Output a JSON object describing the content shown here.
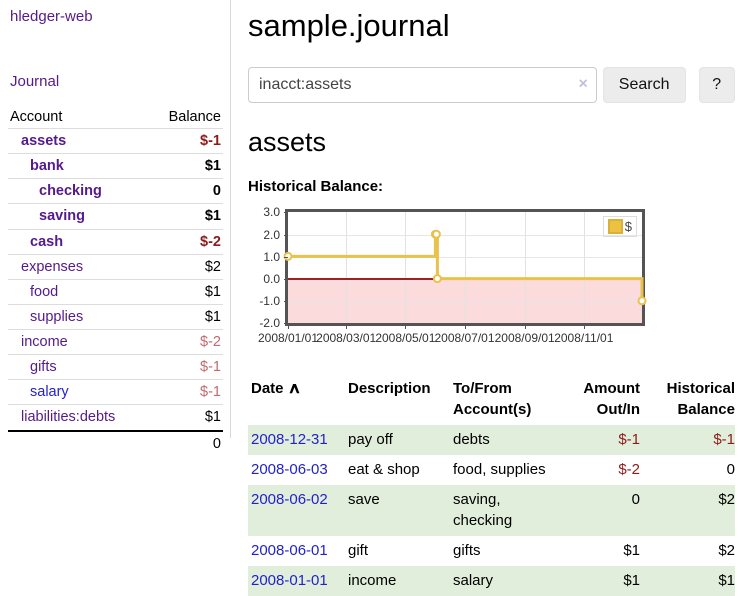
{
  "app": {
    "title": "hledger-web",
    "nav_journal": "Journal"
  },
  "sidebar": {
    "col_account": "Account",
    "col_balance": "Balance",
    "accounts": [
      {
        "label": "assets",
        "depth": 0,
        "bold": true,
        "balance": "$-1"
      },
      {
        "label": "bank",
        "depth": 1,
        "bold": true,
        "balance": "$1"
      },
      {
        "label": "checking",
        "depth": 2,
        "bold": true,
        "balance": "0"
      },
      {
        "label": "saving",
        "depth": 2,
        "bold": true,
        "balance": "$1"
      },
      {
        "label": "cash",
        "depth": 1,
        "bold": true,
        "balance": "$-2"
      },
      {
        "label": "expenses",
        "depth": 0,
        "bold": false,
        "balance": "$2"
      },
      {
        "label": "food",
        "depth": 1,
        "bold": false,
        "balance": "$1"
      },
      {
        "label": "supplies",
        "depth": 1,
        "bold": false,
        "balance": "$1"
      },
      {
        "label": "income",
        "depth": 0,
        "bold": false,
        "balance": "$-2"
      },
      {
        "label": "gifts",
        "depth": 1,
        "bold": false,
        "balance": "$-1"
      },
      {
        "label": "salary",
        "depth": 1,
        "bold": false,
        "balance": "$-1",
        "unvisited": true
      },
      {
        "label": "liabilities:debts",
        "depth": 0,
        "bold": false,
        "balance": "$1"
      }
    ],
    "total": "0"
  },
  "main": {
    "title": "sample.journal",
    "search": {
      "value": "inacct:assets",
      "clear_icon": "×",
      "button_label": "Search",
      "help_label": "?"
    },
    "heading": "assets",
    "chart_label": "Historical Balance:"
  },
  "chart_data": {
    "type": "line",
    "title": "Historical Balance",
    "series": [
      {
        "name": "$",
        "color": "#edc240",
        "step": "after",
        "markers": true,
        "points": [
          [
            "2008-01-01",
            1
          ],
          [
            "2008-06-01",
            2
          ],
          [
            "2008-06-02",
            2
          ],
          [
            "2008-06-03",
            0
          ],
          [
            "2008-12-31",
            -1
          ]
        ]
      }
    ],
    "x_range": [
      "2008-01-01",
      "2008-12-31"
    ],
    "x_ticks": [
      "2008/01/01",
      "2008/03/01",
      "2008/05/01",
      "2008/07/01",
      "2008/09/01",
      "2008/11/01"
    ],
    "y_ticks": [
      "3.0",
      "2.0",
      "1.0",
      "0.0",
      "-1.0",
      "-2.0"
    ],
    "ylim": [
      -2,
      3
    ],
    "grid": true,
    "legend_position": "top-right",
    "zero_line_color": "#9b2226",
    "negative_region_color": "#fbdbdb"
  },
  "transactions": {
    "headers": {
      "date": "Date",
      "description": "Description",
      "to_from": "To/From\nAccount(s)",
      "amount": "Amount\nOut/In",
      "balance": "Historical\nBalance"
    },
    "sort_icon": "∧",
    "rows": [
      {
        "date": "2008-12-31",
        "description": "pay off",
        "to_from": "debts",
        "amount": "$-1",
        "balance": "$-1"
      },
      {
        "date": "2008-06-03",
        "description": "eat & shop",
        "to_from": "food, supplies",
        "amount": "$-2",
        "balance": "0"
      },
      {
        "date": "2008-06-02",
        "description": "save",
        "to_from": "saving,\nchecking",
        "amount": "0",
        "balance": "$2"
      },
      {
        "date": "2008-06-01",
        "description": "gift",
        "to_from": "gifts",
        "amount": "$1",
        "balance": "$2"
      },
      {
        "date": "2008-01-01",
        "description": "income",
        "to_from": "salary",
        "amount": "$1",
        "balance": "$1"
      }
    ]
  }
}
